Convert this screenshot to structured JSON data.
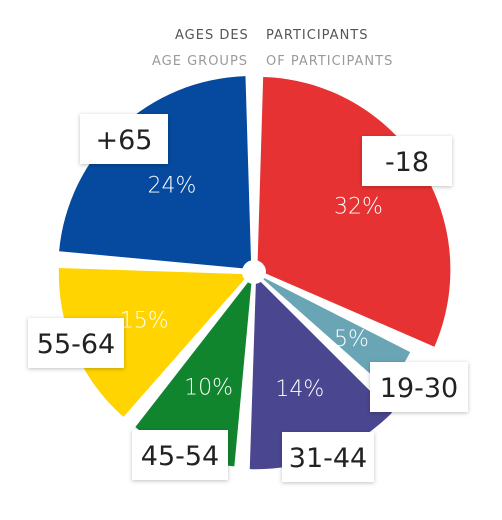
{
  "header": {
    "line1_left": "AGES DES",
    "line1_right": "PARTICIPANTS",
    "line2_left": "AGE GROUPS",
    "line2_right": "OF PARTICIPANTS"
  },
  "chart_data": {
    "type": "pie",
    "title": "",
    "categories": [
      "-18",
      "19-30",
      "31-44",
      "45-54",
      "55-64",
      "+65"
    ],
    "values": [
      32,
      5,
      14,
      10,
      15,
      24
    ],
    "value_labels": [
      "32%",
      "5%",
      "14%",
      "10%",
      "15%",
      "24%"
    ],
    "colors": [
      "#e63232",
      "#6aa5b5",
      "#4a4690",
      "#11842e",
      "#ffd400",
      "#054a9e"
    ],
    "legend": "labels-on-slices"
  }
}
